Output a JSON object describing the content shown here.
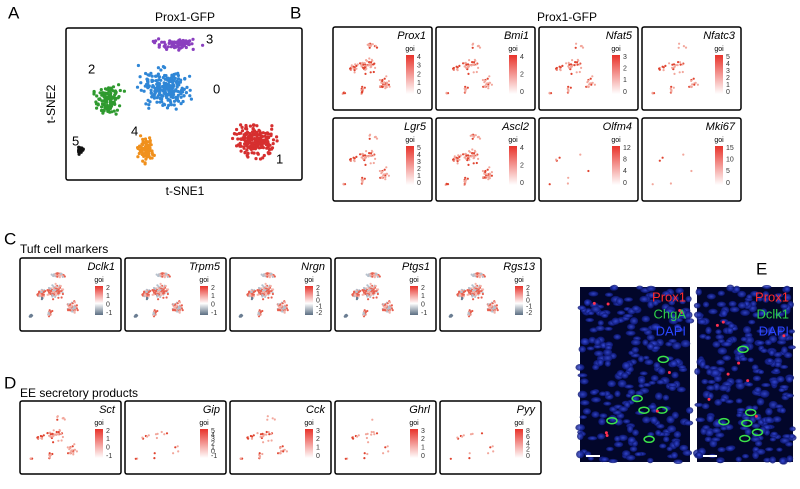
{
  "panels": {
    "A": {
      "label": "A",
      "title": "Prox1-GFP",
      "x_label": "t-SNE1",
      "y_label": "t-SNE2",
      "clusters": [
        "0",
        "1",
        "2",
        "3",
        "4",
        "5"
      ]
    },
    "B": {
      "label": "B",
      "title": "Prox1-GFP",
      "plots": [
        {
          "gene": "Prox1",
          "legend": "goi",
          "ticks": [
            "4",
            "3",
            "2",
            "1",
            "0"
          ]
        },
        {
          "gene": "Bmi1",
          "legend": "goi",
          "ticks": [
            "4",
            "2",
            "0"
          ]
        },
        {
          "gene": "Nfat5",
          "legend": "goi",
          "ticks": [
            "3",
            "2",
            "1",
            "0"
          ]
        },
        {
          "gene": "Nfatc3",
          "legend": "goi",
          "ticks": [
            "5",
            "4",
            "3",
            "2",
            "1",
            "0"
          ]
        },
        {
          "gene": "Lgr5",
          "legend": "goi",
          "ticks": [
            "5",
            "4",
            "3",
            "2",
            "1",
            "0"
          ]
        },
        {
          "gene": "Ascl2",
          "legend": "goi",
          "ticks": [
            "4",
            "2",
            "0"
          ]
        },
        {
          "gene": "Olfm4",
          "legend": "goi",
          "ticks": [
            "12",
            "8",
            "4",
            "0"
          ]
        },
        {
          "gene": "Mki67",
          "legend": "goi",
          "ticks": [
            "15",
            "10",
            "5",
            "0"
          ]
        }
      ]
    },
    "C": {
      "label": "C",
      "title": "Tuft cell markers",
      "plots": [
        {
          "gene": "Dclk1",
          "legend": "goi",
          "ticks": [
            "2",
            "1",
            "0",
            "-1"
          ]
        },
        {
          "gene": "Trpm5",
          "legend": "goi",
          "ticks": [
            "2",
            "1",
            "0",
            "-1"
          ]
        },
        {
          "gene": "Nrgn",
          "legend": "goi",
          "ticks": [
            "2",
            "1",
            "0",
            "-1",
            "-2"
          ]
        },
        {
          "gene": "Ptgs1",
          "legend": "goi",
          "ticks": [
            "2",
            "1",
            "0",
            "-1"
          ]
        },
        {
          "gene": "Rgs13",
          "legend": "goi",
          "ticks": [
            "2",
            "1",
            "0",
            "-1",
            "-2"
          ]
        }
      ]
    },
    "D": {
      "label": "D",
      "title": "EE secretory products",
      "plots": [
        {
          "gene": "Sct",
          "legend": "goi",
          "ticks": [
            "2",
            "1",
            "0",
            "-1"
          ]
        },
        {
          "gene": "Gip",
          "legend": "goi",
          "ticks": [
            "5",
            "4",
            "3",
            "2",
            "1",
            "0",
            "-1"
          ]
        },
        {
          "gene": "Cck",
          "legend": "goi",
          "ticks": [
            "3",
            "2",
            "1",
            "0"
          ]
        },
        {
          "gene": "Ghrl",
          "legend": "goi",
          "ticks": [
            "3",
            "2",
            "1",
            "0"
          ]
        },
        {
          "gene": "Pyy",
          "legend": "goi",
          "ticks": [
            "8",
            "6",
            "4",
            "2",
            "0"
          ]
        }
      ]
    },
    "E": {
      "label": "E",
      "images": [
        {
          "stains": [
            "Prox1",
            "ChgA",
            "DAPI"
          ]
        },
        {
          "stains": [
            "Prox1",
            "Dclk1",
            "DAPI"
          ]
        }
      ]
    }
  }
}
